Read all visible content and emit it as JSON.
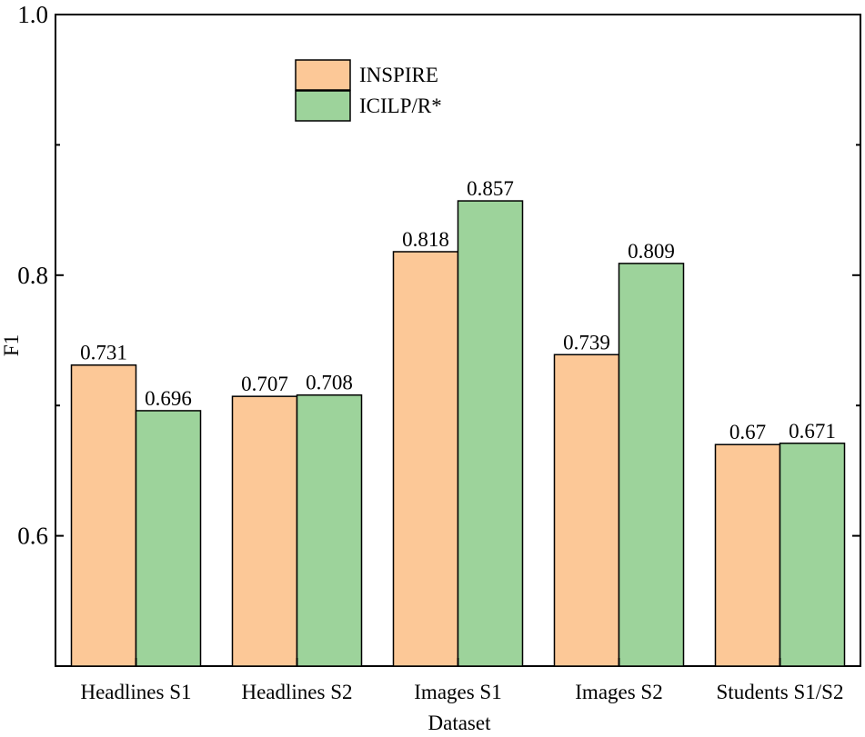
{
  "chart_data": {
    "type": "bar",
    "xlabel": "Dataset",
    "ylabel": "F1",
    "ylim": [
      0.5,
      1.0
    ],
    "yticks": [
      0.6,
      0.8,
      1.0
    ],
    "ytick_labels": [
      "0.6",
      "0.8",
      "1.0"
    ],
    "legend_position": "top-left",
    "categories": [
      "Headlines S1",
      "Headlines S2",
      "Images S1",
      "Images S2",
      "Students S1/S2"
    ],
    "series": [
      {
        "name": "INSPIRE",
        "color": "#FCC897",
        "values": [
          0.731,
          0.707,
          0.818,
          0.739,
          0.67
        ],
        "labels": [
          "0.731",
          "0.707",
          "0.818",
          "0.739",
          "0.67"
        ]
      },
      {
        "name": "ICILP/R*",
        "color": "#9DD39B",
        "values": [
          0.696,
          0.708,
          0.857,
          0.809,
          0.671
        ],
        "labels": [
          "0.696",
          "0.708",
          "0.857",
          "0.809",
          "0.671"
        ]
      }
    ]
  }
}
